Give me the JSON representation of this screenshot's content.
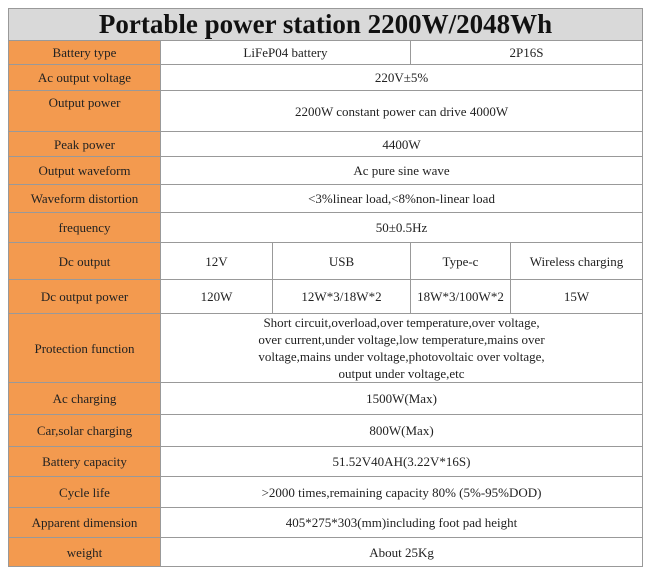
{
  "title": "Portable power station 2200W/2048Wh",
  "colors": {
    "label_bg": "#f39a4f",
    "title_bg": "#d9d9d9"
  },
  "rows": {
    "battery_type": {
      "label": "Battery type",
      "values": [
        "LiFeP04 battery",
        "2P16S"
      ]
    },
    "ac_output_voltage": {
      "label": "Ac output voltage",
      "value": "220V±5%"
    },
    "output_power": {
      "label": "Output power",
      "value": "2200W constant power can drive 4000W"
    },
    "peak_power": {
      "label": "Peak power",
      "value": "4400W"
    },
    "output_waveform": {
      "label": "Output waveform",
      "value": "Ac pure sine wave"
    },
    "waveform_distortion": {
      "label": "Waveform distortion",
      "value": "<3%linear load,<8%non-linear load"
    },
    "frequency": {
      "label": "frequency",
      "value": "50±0.5Hz"
    },
    "dc_output": {
      "label": "Dc output",
      "values": [
        "12V",
        "USB",
        "Type-c",
        "Wireless charging"
      ]
    },
    "dc_output_power": {
      "label": "Dc output power",
      "values": [
        "120W",
        "12W*3/18W*2",
        "18W*3/100W*2",
        "15W"
      ]
    },
    "protection_function": {
      "label": "Protection function",
      "lines": [
        "Short circuit,overload,over temperature,over voltage,",
        "over current,under voltage,low temperature,mains over",
        "voltage,mains under voltage,photovoltaic over voltage,",
        "output under voltage,etc"
      ]
    },
    "ac_charging": {
      "label": "Ac charging",
      "value": "1500W(Max)"
    },
    "car_solar_charging": {
      "label": "Car,solar charging",
      "value": "800W(Max)"
    },
    "battery_capacity": {
      "label": "Battery capacity",
      "value": "51.52V40AH(3.22V*16S)"
    },
    "cycle_life": {
      "label": "Cycle life",
      "value": ">2000 times,remaining capacity 80% (5%-95%DOD)"
    },
    "apparent_dimension": {
      "label": "Apparent dimension",
      "value": "405*275*303(mm)including foot pad height"
    },
    "weight": {
      "label": "weight",
      "value": "About 25Kg"
    }
  }
}
